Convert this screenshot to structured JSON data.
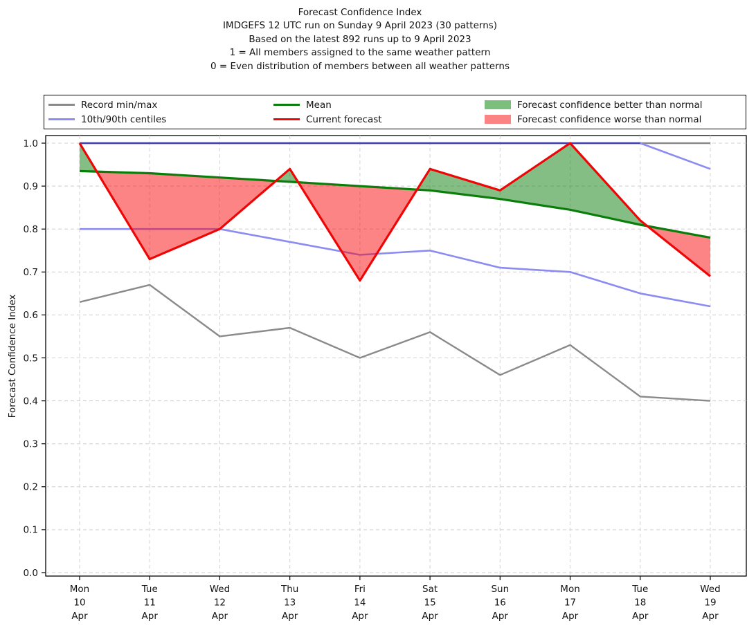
{
  "title": {
    "line1": "Forecast Confidence Index",
    "line2": "IMDGEFS 12 UTC run on Sunday 9 April 2023 (30 patterns)",
    "line3": "Based on the latest 892 runs up to 9 April 2023",
    "line4": "1 = All members assigned to the same weather pattern",
    "line5": "0 = Even distribution of members between all weather patterns"
  },
  "legend": {
    "items": [
      {
        "id": "record-minmax",
        "label": "Record min/max",
        "type": "line",
        "color": "#8a8a8a"
      },
      {
        "id": "centiles",
        "label": "10th/90th centiles",
        "type": "line",
        "color": "#8b8bf2"
      },
      {
        "id": "mean",
        "label": "Mean",
        "type": "line",
        "color": "#0b7d0b"
      },
      {
        "id": "current-forecast",
        "label": "Current forecast",
        "type": "line",
        "color": "#ee0606"
      },
      {
        "id": "better-fill",
        "label": "Forecast confidence better than normal",
        "type": "patch",
        "color": "#7cbf7c"
      },
      {
        "id": "worse-fill",
        "label": "Forecast confidence worse than normal",
        "type": "patch",
        "color": "#fc8383"
      }
    ]
  },
  "chart_data": {
    "type": "line",
    "title": "Forecast Confidence Index",
    "xlabel": "",
    "ylabel": "Forecast Confidence Index",
    "ylim": [
      0.0,
      1.0
    ],
    "ytick_step": 0.1,
    "yticks": [
      "0.0",
      "0.1",
      "0.2",
      "0.3",
      "0.4",
      "0.5",
      "0.6",
      "0.7",
      "0.8",
      "0.9",
      "1.0"
    ],
    "grid": true,
    "legend_position": "top",
    "categories": [
      [
        "Mon",
        "10",
        "Apr"
      ],
      [
        "Tue",
        "11",
        "Apr"
      ],
      [
        "Wed",
        "12",
        "Apr"
      ],
      [
        "Thu",
        "13",
        "Apr"
      ],
      [
        "Fri",
        "14",
        "Apr"
      ],
      [
        "Sat",
        "15",
        "Apr"
      ],
      [
        "Sun",
        "16",
        "Apr"
      ],
      [
        "Mon",
        "17",
        "Apr"
      ],
      [
        "Tue",
        "18",
        "Apr"
      ],
      [
        "Wed",
        "19",
        "Apr"
      ]
    ],
    "series": [
      {
        "name": "Record max",
        "color": "#8a8a8a",
        "width": 2.4,
        "values": [
          1.0,
          1.0,
          1.0,
          1.0,
          1.0,
          1.0,
          1.0,
          1.0,
          1.0,
          1.0
        ]
      },
      {
        "name": "Record min",
        "color": "#8a8a8a",
        "width": 2.4,
        "values": [
          0.63,
          0.67,
          0.55,
          0.57,
          0.5,
          0.56,
          0.46,
          0.53,
          0.41,
          0.4
        ]
      },
      {
        "name": "10th centile",
        "color": "#8b8bf2",
        "width": 2.6,
        "values": [
          0.8,
          0.8,
          0.8,
          0.77,
          0.74,
          0.75,
          0.71,
          0.7,
          0.65,
          0.62
        ]
      },
      {
        "name": "90th centile",
        "color": "#8b8bf2",
        "color_overlap": "#4444b4",
        "overlap_until": 8,
        "width": 2.6,
        "values": [
          1.0,
          1.0,
          1.0,
          1.0,
          1.0,
          1.0,
          1.0,
          1.0,
          1.0,
          0.94
        ]
      },
      {
        "name": "Mean",
        "color": "#0b7d0b",
        "width": 3.2,
        "values": [
          0.935,
          0.93,
          0.92,
          0.91,
          0.9,
          0.89,
          0.87,
          0.845,
          0.81,
          0.78
        ]
      },
      {
        "name": "Current forecast",
        "color": "#ee0606",
        "width": 3.2,
        "values": [
          1.0,
          0.73,
          0.8,
          0.94,
          0.68,
          0.94,
          0.89,
          1.0,
          0.82,
          0.69
        ]
      }
    ],
    "band": {
      "upper": "Current forecast",
      "lower": "Mean",
      "above_color": "rgba(10,125,10,0.5)",
      "below_color": "rgba(250,10,10,0.5)",
      "above_meaning": "Forecast confidence better than normal",
      "below_meaning": "Forecast confidence worse than normal"
    }
  }
}
